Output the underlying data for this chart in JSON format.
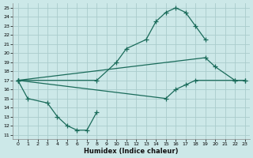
{
  "xlabel": "Humidex (Indice chaleur)",
  "background_color": "#cce8e8",
  "grid_color": "#aacccc",
  "line_color": "#1a6b5a",
  "xlim": [
    -0.5,
    23.5
  ],
  "ylim": [
    10.5,
    25.5
  ],
  "xticks": [
    0,
    1,
    2,
    3,
    4,
    5,
    6,
    7,
    8,
    9,
    10,
    11,
    12,
    13,
    14,
    15,
    16,
    17,
    18,
    19,
    20,
    21,
    22,
    23
  ],
  "yticks": [
    11,
    12,
    13,
    14,
    15,
    16,
    17,
    18,
    19,
    20,
    21,
    22,
    23,
    24,
    25
  ],
  "series": [
    [
      [
        0,
        17
      ],
      [
        1,
        15
      ],
      [
        3,
        14.5
      ],
      [
        4,
        13
      ],
      [
        5,
        12
      ],
      [
        6,
        11.5
      ],
      [
        7,
        11.5
      ],
      [
        8,
        13.5
      ]
    ],
    [
      [
        0,
        17
      ],
      [
        8,
        17
      ],
      [
        10,
        19
      ],
      [
        11,
        20.5
      ],
      [
        13,
        21.5
      ],
      [
        14,
        23.5
      ],
      [
        15,
        24.5
      ],
      [
        16,
        25
      ],
      [
        17,
        24.5
      ],
      [
        18,
        23
      ],
      [
        19,
        21.5
      ]
    ],
    [
      [
        0,
        17
      ],
      [
        15,
        15
      ],
      [
        16,
        16
      ],
      [
        17,
        16.5
      ],
      [
        18,
        17
      ],
      [
        22,
        17
      ],
      [
        23,
        17
      ]
    ],
    [
      [
        0,
        17
      ],
      [
        19,
        19.5
      ],
      [
        20,
        18.5
      ],
      [
        22,
        17
      ],
      [
        23,
        17
      ]
    ]
  ]
}
